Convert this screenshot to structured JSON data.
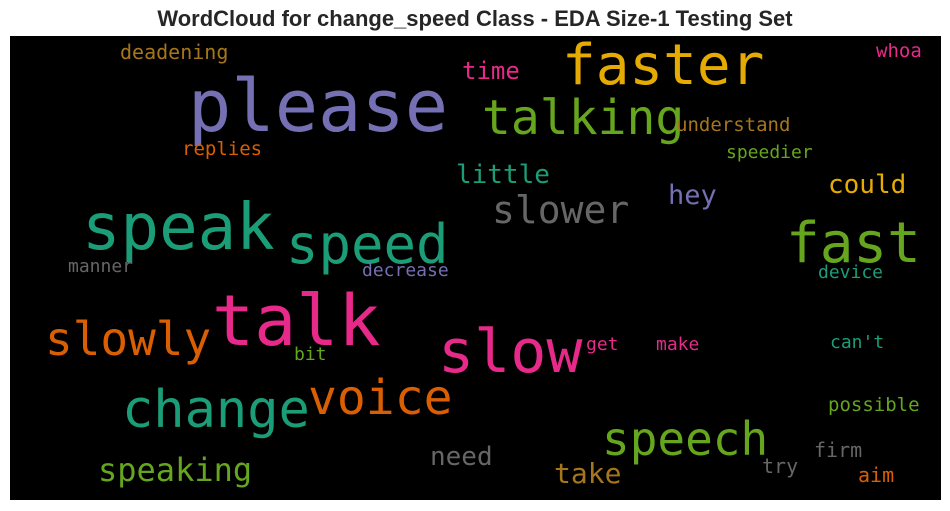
{
  "title": "WordCloud for change_speed Class - EDA Size-1 Testing Set",
  "colors": {
    "background": "#000000",
    "teal": "#1b9e77",
    "orange": "#d95f02",
    "purple": "#7570b3",
    "pink": "#e7298a",
    "green": "#66a61e",
    "gold": "#e6ab02",
    "brown": "#a6761d",
    "gray": "#666666"
  },
  "words": [
    {
      "text": "please",
      "color": "#7570b3"
    },
    {
      "text": "faster",
      "color": "#e6ab02"
    },
    {
      "text": "talking",
      "color": "#66a61e"
    },
    {
      "text": "speak",
      "color": "#1b9e77"
    },
    {
      "text": "speed",
      "color": "#1b9e77"
    },
    {
      "text": "slower",
      "color": "#666666"
    },
    {
      "text": "fast",
      "color": "#66a61e"
    },
    {
      "text": "talk",
      "color": "#e7298a"
    },
    {
      "text": "slowly",
      "color": "#d95f02"
    },
    {
      "text": "slow",
      "color": "#e7298a"
    },
    {
      "text": "change",
      "color": "#1b9e77"
    },
    {
      "text": "voice",
      "color": "#d95f02"
    },
    {
      "text": "speech",
      "color": "#66a61e"
    },
    {
      "text": "speaking",
      "color": "#66a61e"
    },
    {
      "text": "deadening",
      "color": "#a6761d"
    },
    {
      "text": "time",
      "color": "#e7298a"
    },
    {
      "text": "whoa",
      "color": "#e7298a"
    },
    {
      "text": "understand",
      "color": "#a6761d"
    },
    {
      "text": "replies",
      "color": "#d95f02"
    },
    {
      "text": "speedier",
      "color": "#66a61e"
    },
    {
      "text": "little",
      "color": "#1b9e77"
    },
    {
      "text": "hey",
      "color": "#7570b3"
    },
    {
      "text": "could",
      "color": "#e6ab02"
    },
    {
      "text": "manner",
      "color": "#666666"
    },
    {
      "text": "decrease",
      "color": "#7570b3"
    },
    {
      "text": "device",
      "color": "#1b9e77"
    },
    {
      "text": "get",
      "color": "#e7298a"
    },
    {
      "text": "make",
      "color": "#e7298a"
    },
    {
      "text": "can't",
      "color": "#1b9e77"
    },
    {
      "text": "bit",
      "color": "#66a61e"
    },
    {
      "text": "possible",
      "color": "#66a61e"
    },
    {
      "text": "need",
      "color": "#666666"
    },
    {
      "text": "take",
      "color": "#a6761d"
    },
    {
      "text": "firm",
      "color": "#666666"
    },
    {
      "text": "try",
      "color": "#666666"
    },
    {
      "text": "aim",
      "color": "#d95f02"
    }
  ]
}
